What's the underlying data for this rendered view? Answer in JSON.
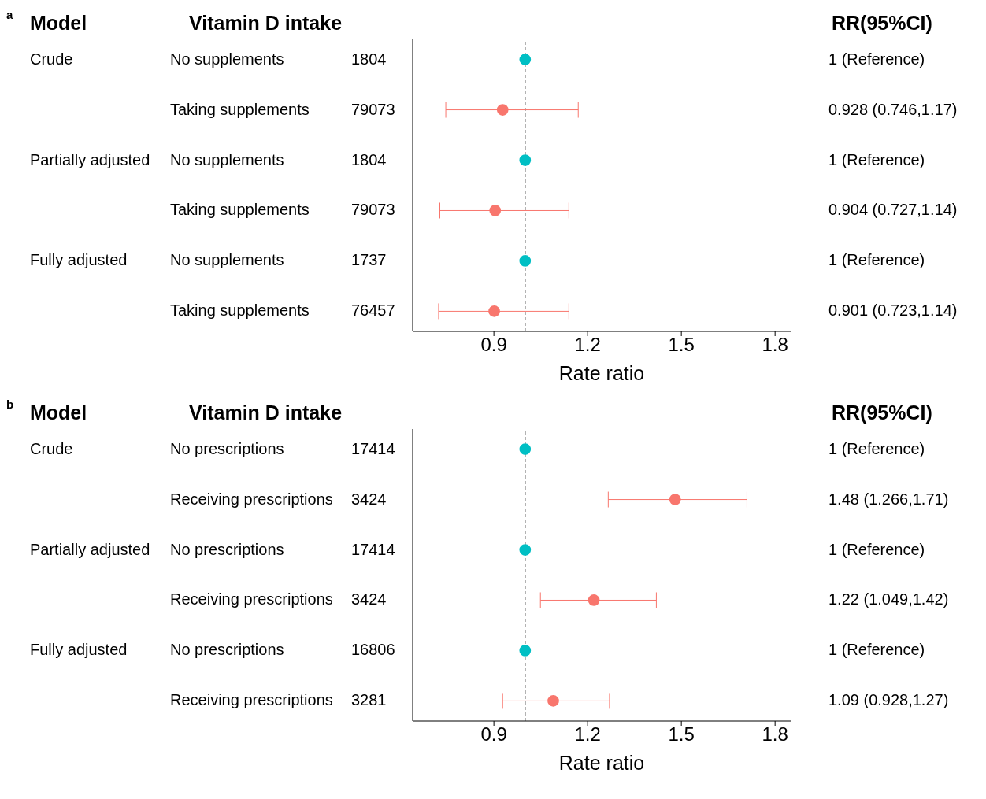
{
  "chart_data": [
    {
      "type": "scatter",
      "orientation": "horizontal",
      "xlabel": "Rate ratio",
      "categories": [
        "No supplements",
        "Taking supplements",
        "No supplements",
        "Taking supplements",
        "No supplements",
        "Taking supplements"
      ],
      "values": [
        1,
        0.928,
        1,
        0.904,
        1,
        0.901
      ],
      "errors": [
        null,
        [
          0.746,
          1.17
        ],
        null,
        [
          0.727,
          1.14
        ],
        null,
        [
          0.723,
          1.14
        ]
      ],
      "colors": [
        "#00bfc4",
        "#f8766d",
        "#00bfc4",
        "#f8766d",
        "#00bfc4",
        "#f8766d"
      ],
      "annotations": [
        "a",
        "Model",
        "Vitamin D intake",
        "RR(95%CI)",
        "Crude",
        "Partially adjusted",
        "Fully adjusted",
        "1804",
        "79073",
        "1804",
        "79073",
        "1737",
        "76457",
        "1 (Reference)",
        "0.928 (0.746,1.17)",
        "1 (Reference)",
        "0.904 (0.727,1.14)",
        "1 (Reference)",
        "0.901 (0.723,1.14)"
      ],
      "xlim": [
        0.64,
        1.85
      ],
      "xticks": [
        0.9,
        1.2,
        1.5,
        1.8
      ],
      "ref_lines": [
        {
          "axis": "x",
          "value": 1,
          "color": "#000000",
          "line_style": "dashed"
        }
      ],
      "marker": "circle"
    },
    {
      "type": "scatter",
      "orientation": "horizontal",
      "xlabel": "Rate ratio",
      "categories": [
        "No prescriptions",
        "Receiving prescriptions",
        "No prescriptions",
        "Receiving prescriptions",
        "No prescriptions",
        "Receiving prescriptions"
      ],
      "values": [
        1,
        1.48,
        1,
        1.22,
        1,
        1.09
      ],
      "errors": [
        null,
        [
          1.266,
          1.71
        ],
        null,
        [
          1.049,
          1.42
        ],
        null,
        [
          0.928,
          1.27
        ]
      ],
      "colors": [
        "#00bfc4",
        "#f8766d",
        "#00bfc4",
        "#f8766d",
        "#00bfc4",
        "#f8766d"
      ],
      "annotations": [
        "b",
        "Model",
        "Vitamin D intake",
        "RR(95%CI)",
        "Crude",
        "Partially adjusted",
        "Fully adjusted",
        "17414",
        "3424",
        "17414",
        "3424",
        "16806",
        "3281",
        "1 (Reference)",
        "1.48 (1.266,1.71)",
        "1 (Reference)",
        "1.22 (1.049,1.42)",
        "1 (Reference)",
        "1.09 (0.928,1.27)"
      ],
      "xlim": [
        0.64,
        1.85
      ],
      "xticks": [
        0.9,
        1.2,
        1.5,
        1.8
      ],
      "ref_lines": [
        {
          "axis": "x",
          "value": 1,
          "color": "#000000",
          "line_style": "dashed"
        }
      ],
      "marker": "circle"
    }
  ]
}
